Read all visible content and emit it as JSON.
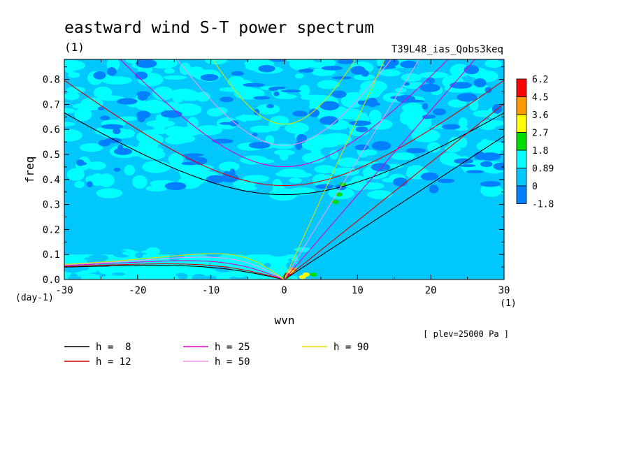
{
  "chart_data": {
    "type": "contour",
    "title": "eastward wind S-T power spectrum",
    "subtitle": "(1)",
    "experiment": "T39L48_ias_Qobs3keq",
    "xlabel": "wvn",
    "ylabel": "freq",
    "x_unit": "(1)",
    "y_unit": "(day-1)",
    "annotation": "[ plev=25000 Pa ]",
    "xlim": [
      -30,
      30
    ],
    "ylim": [
      0,
      0.88
    ],
    "x_ticks": [
      -30,
      -20,
      -10,
      0,
      10,
      20,
      30
    ],
    "y_ticks": [
      0.0,
      0.1,
      0.2,
      0.3,
      0.4,
      0.5,
      0.6,
      0.7,
      0.8
    ],
    "x_tick_labels": [
      "-30",
      "-20",
      "-10",
      "0",
      "10",
      "20",
      "30"
    ],
    "y_tick_labels": [
      "0.0",
      "0.1",
      "0.2",
      "0.3",
      "0.4",
      "0.5",
      "0.6",
      "0.7",
      "0.8"
    ],
    "colorbar": {
      "levels": [
        "6.2",
        "4.5",
        "3.6",
        "2.7",
        "1.8",
        "0.89",
        "0",
        "-1.8"
      ],
      "colors": [
        "#ff0000",
        "#ff9900",
        "#ffff00",
        "#00dd00",
        "#00ffff",
        "#00c8ff",
        "#0080ff"
      ]
    },
    "dispersion_curves": [
      {
        "label": "h =  8",
        "h": 8,
        "color": "#000000"
      },
      {
        "label": "h = 12",
        "h": 12,
        "color": "#dd0000"
      },
      {
        "label": "h = 25",
        "h": 25,
        "color": "#dd00cc"
      },
      {
        "label": "h = 50",
        "h": 50,
        "color": "#ee99ee"
      },
      {
        "label": "h = 90",
        "h": 90,
        "color": "#dddd00"
      }
    ]
  }
}
